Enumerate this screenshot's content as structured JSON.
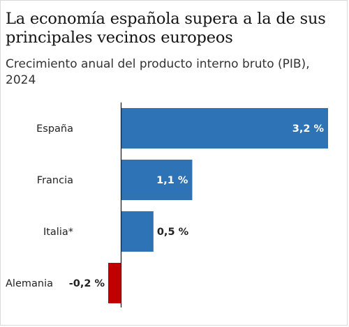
{
  "chart_data": {
    "type": "bar",
    "orientation": "horizontal",
    "title": "La economía española supera a la de sus principales vecinos europeos",
    "subtitle": "Crecimiento anual del producto interno bruto (PIB), 2024",
    "categories": [
      "España",
      "Francia",
      "Italia*",
      "Alemania"
    ],
    "values": [
      3.2,
      1.1,
      0.5,
      -0.2
    ],
    "value_labels": [
      "3,2 %",
      "1,1 %",
      "0,5 %",
      "-0,2 %"
    ],
    "xlim": [
      -0.2,
      3.2
    ],
    "grid": false,
    "legend": "none",
    "colors": {
      "positive": "#2e73b6",
      "negative": "#c00000",
      "label_inside": "#ffffff",
      "label_outside": "#222222",
      "axis": "#222222"
    }
  }
}
